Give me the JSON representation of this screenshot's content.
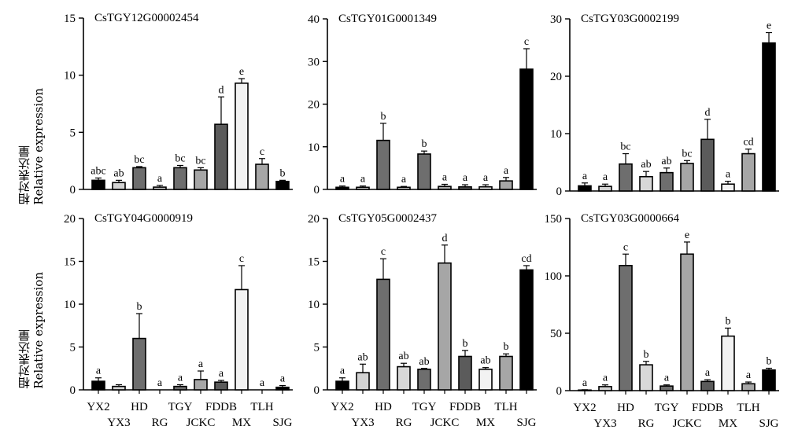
{
  "y_axis_label": {
    "line1": "相对表达量",
    "line2": "Relative expression"
  },
  "chart_data": [
    {
      "type": "bar",
      "title": "CsTGY12G00002454",
      "ylim": [
        0,
        15
      ],
      "yticks": [
        0,
        5,
        10,
        15
      ],
      "categories": [
        "YX2",
        "YX3",
        "HD",
        "RG",
        "TGY",
        "JCKC",
        "FDDB",
        "MX",
        "TLH",
        "SJG"
      ],
      "values": [
        0.8,
        0.6,
        1.9,
        0.2,
        1.9,
        1.7,
        5.7,
        9.3,
        2.2,
        0.7
      ],
      "errors": [
        0.2,
        0.2,
        0.1,
        0.15,
        0.2,
        0.2,
        2.4,
        0.4,
        0.5,
        0.1
      ],
      "letters": [
        "abc",
        "ab",
        "bc",
        "a",
        "bc",
        "bc",
        "d",
        "e",
        "c",
        "b"
      ],
      "colors": [
        "#000000",
        "#d3d3d3",
        "#6e6e6e",
        "#d8d8d8",
        "#6e6e6e",
        "#a6a6a6",
        "#5b5b5b",
        "#f2f2f2",
        "#a6a6a6",
        "#000000"
      ],
      "show_xlabels": false,
      "grid": false
    },
    {
      "type": "bar",
      "title": "CsTGY01G0001349",
      "ylim": [
        0,
        40
      ],
      "yticks": [
        0,
        10,
        20,
        30,
        40
      ],
      "categories": [
        "YX2",
        "YX3",
        "HD",
        "RG",
        "TGY",
        "JCKC",
        "FDDB",
        "MX",
        "TLH",
        "SJG"
      ],
      "values": [
        0.5,
        0.5,
        11.5,
        0.5,
        8.3,
        0.7,
        0.6,
        0.6,
        2.0,
        28.2
      ],
      "errors": [
        0.3,
        0.3,
        4.0,
        0.2,
        0.7,
        0.5,
        0.5,
        0.5,
        0.8,
        4.8
      ],
      "letters": [
        "a",
        "a",
        "b",
        "a",
        "b",
        "a",
        "a",
        "a",
        "a",
        "c"
      ],
      "colors": [
        "#000000",
        "#d3d3d3",
        "#6e6e6e",
        "#d8d8d8",
        "#6e6e6e",
        "#a6a6a6",
        "#5b5b5b",
        "#f2f2f2",
        "#a6a6a6",
        "#000000"
      ],
      "show_xlabels": false,
      "grid": false
    },
    {
      "type": "bar",
      "title": "CsTGY03G0002199",
      "ylim": [
        0,
        30
      ],
      "yticks": [
        0,
        10,
        20,
        30
      ],
      "categories": [
        "YX2",
        "YX3",
        "HD",
        "RG",
        "TGY",
        "JCKC",
        "FDDB",
        "MX",
        "TLH",
        "SJG"
      ],
      "values": [
        0.9,
        0.8,
        4.7,
        2.5,
        3.2,
        4.8,
        9.0,
        1.2,
        6.5,
        25.8
      ],
      "errors": [
        0.5,
        0.4,
        1.8,
        0.9,
        0.8,
        0.5,
        3.5,
        0.5,
        0.8,
        1.8
      ],
      "letters": [
        "a",
        "a",
        "bc",
        "ab",
        "ab",
        "bc",
        "d",
        "a",
        "cd",
        "e"
      ],
      "colors": [
        "#000000",
        "#d3d3d3",
        "#6e6e6e",
        "#d8d8d8",
        "#6e6e6e",
        "#a6a6a6",
        "#5b5b5b",
        "#f2f2f2",
        "#a6a6a6",
        "#000000"
      ],
      "show_xlabels": false,
      "grid": false
    },
    {
      "type": "bar",
      "title": "CsTGY04G0000919",
      "ylim": [
        0,
        20
      ],
      "yticks": [
        0,
        5,
        10,
        15,
        20
      ],
      "categories": [
        "YX2",
        "YX3",
        "HD",
        "RG",
        "TGY",
        "JCKC",
        "FDDB",
        "MX",
        "TLH",
        "SJG"
      ],
      "values": [
        1.0,
        0.4,
        6.0,
        0.0,
        0.4,
        1.2,
        0.9,
        11.7,
        0.0,
        0.3
      ],
      "errors": [
        0.4,
        0.2,
        2.9,
        0.0,
        0.2,
        1.0,
        0.2,
        2.8,
        0.0,
        0.2
      ],
      "letters": [
        "a",
        "",
        "b",
        "a",
        "a",
        "a",
        "a",
        "c",
        "a",
        "a"
      ],
      "colors": [
        "#000000",
        "#d3d3d3",
        "#6e6e6e",
        "#d8d8d8",
        "#6e6e6e",
        "#a6a6a6",
        "#5b5b5b",
        "#f2f2f2",
        "#a6a6a6",
        "#000000"
      ],
      "show_xlabels": true,
      "grid": false
    },
    {
      "type": "bar",
      "title": "CsTGY05G0002437",
      "ylim": [
        0,
        20
      ],
      "yticks": [
        0,
        5,
        10,
        15,
        20
      ],
      "categories": [
        "YX2",
        "YX3",
        "HD",
        "RG",
        "TGY",
        "JCKC",
        "FDDB",
        "MX",
        "TLH",
        "SJG"
      ],
      "values": [
        1.0,
        2.0,
        12.9,
        2.7,
        2.4,
        14.8,
        3.9,
        2.4,
        3.9,
        14.0
      ],
      "errors": [
        0.4,
        1.0,
        2.4,
        0.4,
        0.1,
        2.1,
        0.7,
        0.2,
        0.3,
        0.5
      ],
      "letters": [
        "a",
        "ab",
        "c",
        "ab",
        "ab",
        "d",
        "b",
        "ab",
        "b",
        "cd"
      ],
      "colors": [
        "#000000",
        "#d3d3d3",
        "#6e6e6e",
        "#d8d8d8",
        "#6e6e6e",
        "#a6a6a6",
        "#5b5b5b",
        "#f2f2f2",
        "#a6a6a6",
        "#000000"
      ],
      "show_xlabels": true,
      "grid": false
    },
    {
      "type": "bar",
      "title": "CsTGY03G0000664",
      "ylim": [
        0,
        150
      ],
      "yticks": [
        0,
        50,
        100,
        150
      ],
      "categories": [
        "YX2",
        "YX3",
        "HD",
        "RG",
        "TGY",
        "JCKC",
        "FDDB",
        "MX",
        "TLH",
        "SJG"
      ],
      "values": [
        0.5,
        3.5,
        109.0,
        22.5,
        4.0,
        119.0,
        8.0,
        47.5,
        6.0,
        18.0
      ],
      "errors": [
        0.3,
        1.5,
        10.0,
        3.0,
        1.0,
        10.5,
        1.5,
        7.0,
        1.5,
        1.5
      ],
      "letters": [
        "a",
        "a",
        "c",
        "b",
        "a",
        "e",
        "a",
        "b",
        "a",
        "b"
      ],
      "colors": [
        "#000000",
        "#d3d3d3",
        "#6e6e6e",
        "#d8d8d8",
        "#6e6e6e",
        "#a6a6a6",
        "#5b5b5b",
        "#f2f2f2",
        "#a6a6a6",
        "#000000"
      ],
      "show_xlabels": true,
      "grid": false
    }
  ]
}
